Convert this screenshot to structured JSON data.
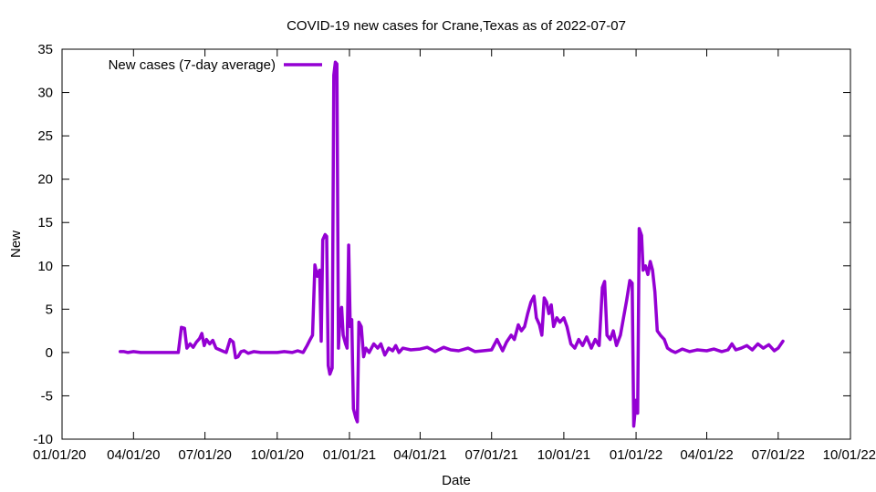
{
  "chart_data": {
    "type": "line",
    "title": "COVID-19 new cases for Crane,Texas as of 2022-07-07",
    "xlabel": "Date",
    "ylabel": "New",
    "xlim": [
      "2020-01-01",
      "2022-10-01"
    ],
    "ylim": [
      -10,
      35
    ],
    "grid": false,
    "legend": "top-left",
    "line_color": "#9400d3",
    "x_ticks": [
      {
        "date": "2020-01-01",
        "label": "01/01/20"
      },
      {
        "date": "2020-04-01",
        "label": "04/01/20"
      },
      {
        "date": "2020-07-01",
        "label": "07/01/20"
      },
      {
        "date": "2020-10-01",
        "label": "10/01/20"
      },
      {
        "date": "2021-01-01",
        "label": "01/01/21"
      },
      {
        "date": "2021-04-01",
        "label": "04/01/21"
      },
      {
        "date": "2021-07-01",
        "label": "07/01/21"
      },
      {
        "date": "2021-10-01",
        "label": "10/01/21"
      },
      {
        "date": "2022-01-01",
        "label": "01/01/22"
      },
      {
        "date": "2022-04-01",
        "label": "04/01/22"
      },
      {
        "date": "2022-07-01",
        "label": "07/01/22"
      },
      {
        "date": "2022-10-01",
        "label": "10/01/22"
      }
    ],
    "y_ticks": [
      -10,
      -5,
      0,
      5,
      10,
      15,
      20,
      25,
      30,
      35
    ],
    "series": [
      {
        "name": "New cases (7-day average)",
        "points": [
          [
            "2020-03-15",
            0.1
          ],
          [
            "2020-03-20",
            0.1
          ],
          [
            "2020-03-25",
            0
          ],
          [
            "2020-04-01",
            0.1
          ],
          [
            "2020-04-10",
            0
          ],
          [
            "2020-04-20",
            0
          ],
          [
            "2020-05-01",
            0
          ],
          [
            "2020-05-10",
            0
          ],
          [
            "2020-05-20",
            0
          ],
          [
            "2020-05-28",
            0
          ],
          [
            "2020-06-01",
            2.9
          ],
          [
            "2020-06-05",
            2.8
          ],
          [
            "2020-06-08",
            0.5
          ],
          [
            "2020-06-12",
            1.0
          ],
          [
            "2020-06-16",
            0.6
          ],
          [
            "2020-06-20",
            1.2
          ],
          [
            "2020-06-24",
            1.6
          ],
          [
            "2020-06-27",
            2.2
          ],
          [
            "2020-06-30",
            0.8
          ],
          [
            "2020-07-03",
            1.5
          ],
          [
            "2020-07-07",
            1.0
          ],
          [
            "2020-07-11",
            1.4
          ],
          [
            "2020-07-15",
            0.5
          ],
          [
            "2020-07-20",
            0.3
          ],
          [
            "2020-07-25",
            0.1
          ],
          [
            "2020-07-28",
            0
          ],
          [
            "2020-08-02",
            1.5
          ],
          [
            "2020-08-06",
            1.2
          ],
          [
            "2020-08-09",
            -0.6
          ],
          [
            "2020-08-12",
            -0.5
          ],
          [
            "2020-08-16",
            0.1
          ],
          [
            "2020-08-20",
            0.2
          ],
          [
            "2020-08-25",
            -0.1
          ],
          [
            "2020-09-01",
            0.1
          ],
          [
            "2020-09-10",
            0
          ],
          [
            "2020-09-20",
            0
          ],
          [
            "2020-10-01",
            0
          ],
          [
            "2020-10-10",
            0.1
          ],
          [
            "2020-10-20",
            0
          ],
          [
            "2020-10-27",
            0.2
          ],
          [
            "2020-11-03",
            0
          ],
          [
            "2020-11-08",
            0.8
          ],
          [
            "2020-11-12",
            1.5
          ],
          [
            "2020-11-15",
            2.0
          ],
          [
            "2020-11-18",
            10.1
          ],
          [
            "2020-11-21",
            8.8
          ],
          [
            "2020-11-24",
            9.5
          ],
          [
            "2020-11-26",
            1.3
          ],
          [
            "2020-11-28",
            13.0
          ],
          [
            "2020-12-01",
            13.6
          ],
          [
            "2020-12-03",
            13.4
          ],
          [
            "2020-12-05",
            -1.5
          ],
          [
            "2020-12-07",
            -2.5
          ],
          [
            "2020-12-10",
            -1.8
          ],
          [
            "2020-12-12",
            32.0
          ],
          [
            "2020-12-14",
            33.5
          ],
          [
            "2020-12-16",
            33.3
          ],
          [
            "2020-12-18",
            0.5
          ],
          [
            "2020-12-20",
            4.0
          ],
          [
            "2020-12-22",
            5.2
          ],
          [
            "2020-12-24",
            2.0
          ],
          [
            "2020-12-27",
            1.0
          ],
          [
            "2020-12-29",
            0.5
          ],
          [
            "2020-12-31",
            12.4
          ],
          [
            "2021-01-02",
            3.0
          ],
          [
            "2021-01-04",
            3.8
          ],
          [
            "2021-01-06",
            -6.5
          ],
          [
            "2021-01-09",
            -7.5
          ],
          [
            "2021-01-11",
            -8.0
          ],
          [
            "2021-01-13",
            3.5
          ],
          [
            "2021-01-16",
            3.0
          ],
          [
            "2021-01-19",
            -0.5
          ],
          [
            "2021-01-22",
            0.5
          ],
          [
            "2021-01-26",
            0
          ],
          [
            "2021-02-01",
            1.0
          ],
          [
            "2021-02-06",
            0.5
          ],
          [
            "2021-02-10",
            1.0
          ],
          [
            "2021-02-15",
            -0.3
          ],
          [
            "2021-02-20",
            0.5
          ],
          [
            "2021-02-25",
            0.2
          ],
          [
            "2021-03-01",
            0.8
          ],
          [
            "2021-03-05",
            0
          ],
          [
            "2021-03-10",
            0.5
          ],
          [
            "2021-03-20",
            0.3
          ],
          [
            "2021-04-01",
            0.4
          ],
          [
            "2021-04-10",
            0.6
          ],
          [
            "2021-04-20",
            0.1
          ],
          [
            "2021-05-01",
            0.6
          ],
          [
            "2021-05-10",
            0.3
          ],
          [
            "2021-05-20",
            0.2
          ],
          [
            "2021-06-01",
            0.5
          ],
          [
            "2021-06-10",
            0.1
          ],
          [
            "2021-06-20",
            0.2
          ],
          [
            "2021-07-01",
            0.3
          ],
          [
            "2021-07-08",
            1.5
          ],
          [
            "2021-07-15",
            0.2
          ],
          [
            "2021-07-20",
            1.2
          ],
          [
            "2021-07-26",
            2.0
          ],
          [
            "2021-07-30",
            1.5
          ],
          [
            "2021-08-04",
            3.2
          ],
          [
            "2021-08-08",
            2.5
          ],
          [
            "2021-08-12",
            3.0
          ],
          [
            "2021-08-16",
            4.5
          ],
          [
            "2021-08-20",
            5.8
          ],
          [
            "2021-08-24",
            6.5
          ],
          [
            "2021-08-27",
            4.0
          ],
          [
            "2021-08-31",
            3.2
          ],
          [
            "2021-09-03",
            2.0
          ],
          [
            "2021-09-06",
            6.3
          ],
          [
            "2021-09-09",
            5.8
          ],
          [
            "2021-09-12",
            4.5
          ],
          [
            "2021-09-15",
            5.5
          ],
          [
            "2021-09-18",
            3.0
          ],
          [
            "2021-09-22",
            4.0
          ],
          [
            "2021-09-26",
            3.5
          ],
          [
            "2021-10-01",
            4.0
          ],
          [
            "2021-10-05",
            3.0
          ],
          [
            "2021-10-10",
            1.0
          ],
          [
            "2021-10-15",
            0.5
          ],
          [
            "2021-10-20",
            1.5
          ],
          [
            "2021-10-25",
            0.8
          ],
          [
            "2021-10-30",
            1.8
          ],
          [
            "2021-11-05",
            0.5
          ],
          [
            "2021-11-10",
            1.5
          ],
          [
            "2021-11-15",
            0.8
          ],
          [
            "2021-11-19",
            7.5
          ],
          [
            "2021-11-22",
            8.2
          ],
          [
            "2021-11-25",
            2.0
          ],
          [
            "2021-11-29",
            1.5
          ],
          [
            "2021-12-03",
            2.5
          ],
          [
            "2021-12-07",
            0.8
          ],
          [
            "2021-12-12",
            2.0
          ],
          [
            "2021-12-16",
            4.0
          ],
          [
            "2021-12-20",
            6.0
          ],
          [
            "2021-12-24",
            8.3
          ],
          [
            "2021-12-27",
            8.0
          ],
          [
            "2021-12-29",
            -8.5
          ],
          [
            "2022-01-01",
            -5.5
          ],
          [
            "2022-01-03",
            -7.0
          ],
          [
            "2022-01-05",
            14.3
          ],
          [
            "2022-01-08",
            13.5
          ],
          [
            "2022-01-10",
            9.5
          ],
          [
            "2022-01-13",
            10.0
          ],
          [
            "2022-01-16",
            9.0
          ],
          [
            "2022-01-19",
            10.5
          ],
          [
            "2022-01-22",
            9.5
          ],
          [
            "2022-01-25",
            7.0
          ],
          [
            "2022-01-28",
            2.5
          ],
          [
            "2022-02-01",
            2.0
          ],
          [
            "2022-02-06",
            1.5
          ],
          [
            "2022-02-10",
            0.5
          ],
          [
            "2022-02-15",
            0.2
          ],
          [
            "2022-02-20",
            0
          ],
          [
            "2022-03-01",
            0.4
          ],
          [
            "2022-03-10",
            0.1
          ],
          [
            "2022-03-20",
            0.3
          ],
          [
            "2022-04-01",
            0.2
          ],
          [
            "2022-04-10",
            0.4
          ],
          [
            "2022-04-20",
            0.1
          ],
          [
            "2022-04-28",
            0.3
          ],
          [
            "2022-05-03",
            1.0
          ],
          [
            "2022-05-08",
            0.3
          ],
          [
            "2022-05-15",
            0.5
          ],
          [
            "2022-05-22",
            0.8
          ],
          [
            "2022-05-29",
            0.3
          ],
          [
            "2022-06-05",
            1.0
          ],
          [
            "2022-06-12",
            0.5
          ],
          [
            "2022-06-19",
            0.9
          ],
          [
            "2022-06-26",
            0.2
          ],
          [
            "2022-07-01",
            0.5
          ],
          [
            "2022-07-07",
            1.3
          ]
        ]
      }
    ]
  }
}
